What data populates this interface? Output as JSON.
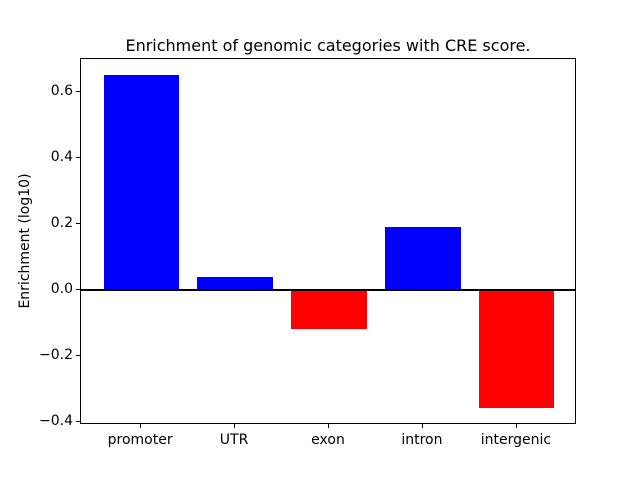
{
  "figure": {
    "background": "#ffffff"
  },
  "chart_data": {
    "type": "bar",
    "title": "Enrichment of genomic categories with CRE score.",
    "xlabel": "",
    "ylabel": "Enrichment (log10)",
    "categories": [
      "promoter",
      "UTR",
      "exon",
      "intron",
      "intergenic"
    ],
    "values": [
      0.65,
      0.04,
      -0.12,
      0.19,
      -0.36
    ],
    "bar_colors": [
      "#0000ff",
      "#0000ff",
      "#ff0000",
      "#0000ff",
      "#ff0000"
    ],
    "positive_color": "#0000ff",
    "negative_color": "#ff0000",
    "bar_width": 0.8,
    "xlim": [
      -0.64,
      4.64
    ],
    "ylim": [
      -0.41,
      0.7
    ],
    "yticks": [
      {
        "value": 0.6,
        "label": "0.6"
      },
      {
        "value": 0.4,
        "label": "0.4"
      },
      {
        "value": 0.2,
        "label": "0.2"
      },
      {
        "value": 0.0,
        "label": "0.0"
      },
      {
        "value": -0.2,
        "label": "−0.2"
      },
      {
        "value": -0.4,
        "label": "−0.4"
      }
    ],
    "zero_line": true,
    "grid": false,
    "legend": null
  }
}
